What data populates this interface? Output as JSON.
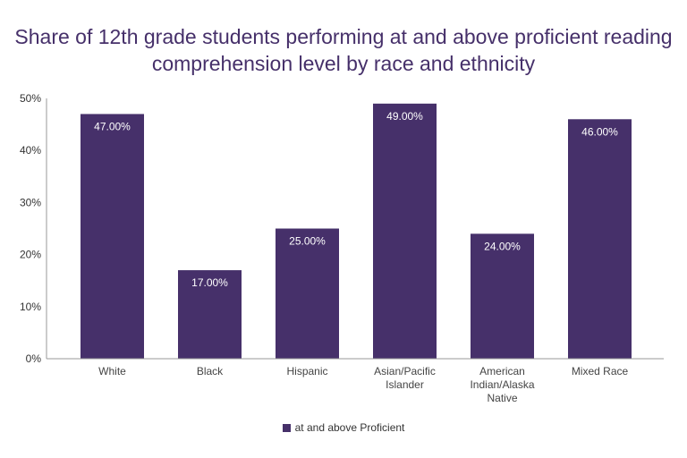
{
  "chart_data": {
    "type": "bar",
    "title": "Share of 12th grade students performing at and above proficient reading comprehension level by race and ethnicity",
    "categories": [
      [
        "White"
      ],
      [
        "Black"
      ],
      [
        "Hispanic"
      ],
      [
        "Asian/Pacific",
        "Islander"
      ],
      [
        "American",
        "Indian/Alaska",
        "Native"
      ],
      [
        "Mixed Race"
      ]
    ],
    "series": [
      {
        "name": "at and above Proficient",
        "values": [
          47,
          17,
          25,
          49,
          24,
          46
        ],
        "labels": [
          "47.00%",
          "17.00%",
          "25.00%",
          "49.00%",
          "24.00%",
          "46.00%"
        ]
      }
    ],
    "ylim": [
      0,
      50
    ],
    "yticks": [
      "0%",
      "10%",
      "20%",
      "30%",
      "40%",
      "50%"
    ],
    "xlabel": "",
    "ylabel": "",
    "grid": false,
    "legend": "bottom",
    "color": "#46306a"
  }
}
